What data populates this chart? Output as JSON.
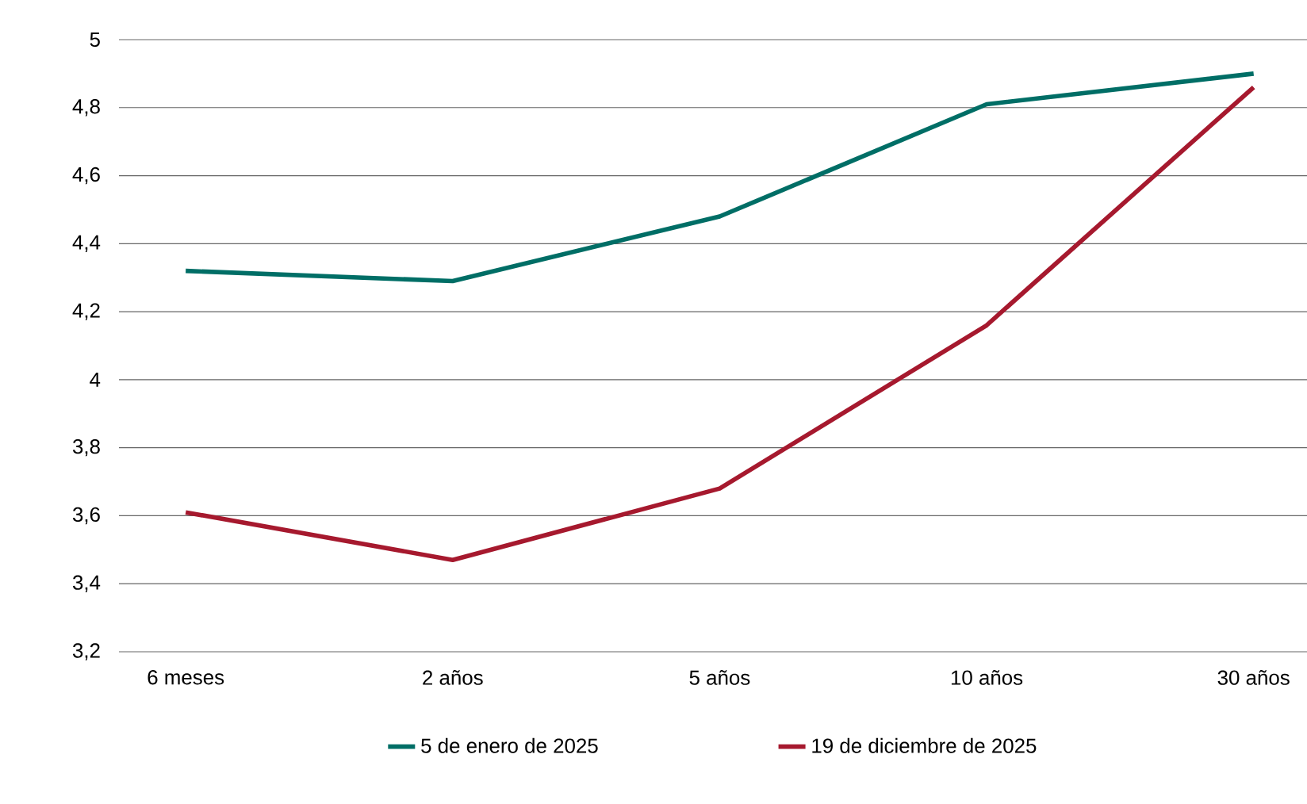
{
  "chart_data": {
    "type": "line",
    "categories": [
      "6 meses",
      "2 años",
      "5 años",
      "10 años",
      "30 años"
    ],
    "series": [
      {
        "name": "5 de enero de 2025",
        "color": "#006e66",
        "values": [
          4.32,
          4.29,
          4.48,
          4.81,
          4.9
        ]
      },
      {
        "name": "19 de diciembre de 2025",
        "color": "#a6192e",
        "values": [
          3.61,
          3.47,
          3.68,
          4.16,
          4.86
        ]
      }
    ],
    "ylim": [
      3.2,
      5
    ],
    "yticks": [
      {
        "value": 3.2,
        "label": "3,2"
      },
      {
        "value": 3.4,
        "label": "3,4"
      },
      {
        "value": 3.6,
        "label": "3,6"
      },
      {
        "value": 3.8,
        "label": "3,8"
      },
      4,
      {
        "value": 4.2,
        "label": "4,2"
      },
      {
        "value": 4.4,
        "label": "4,4"
      },
      {
        "value": 4.6,
        "label": "4,6"
      },
      {
        "value": 4.8,
        "label": "4,8"
      },
      5
    ],
    "grid": "y",
    "legend": "bottom",
    "marker": "none",
    "line_style": "solid"
  }
}
